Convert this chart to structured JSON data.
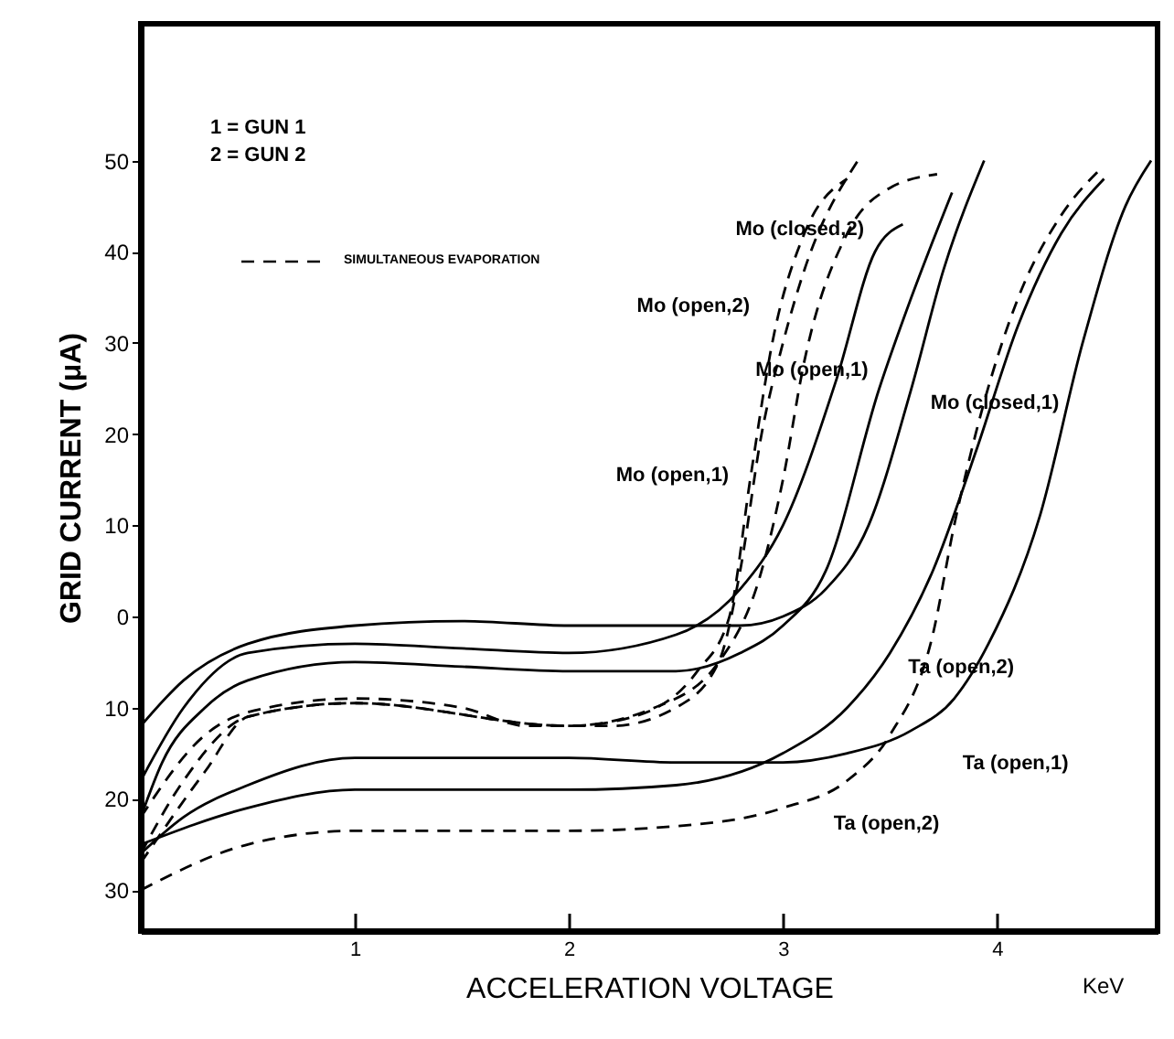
{
  "chart_data": {
    "type": "line",
    "xlabel": "ACCELERATION VOLTAGE",
    "ylabel": "GRID CURRENT (μA)",
    "xlim": [
      0,
      4.75
    ],
    "ylim": [
      -34.5,
      65
    ],
    "xticks": [
      1,
      2,
      3,
      4
    ],
    "yticks": [
      {
        "value": -30,
        "label": "30"
      },
      {
        "value": -20,
        "label": "20"
      },
      {
        "value": -10,
        "label": "10"
      },
      0,
      10,
      20,
      30,
      40,
      50
    ],
    "grid": false,
    "annotations": [
      "1 = GUN 1",
      "2 = GUN 2",
      "SIMULTANEOUS EVAPORATION",
      "KeV",
      {
        "text": "Mo (closed,2)",
        "x": 3.43,
        "y": 40
      },
      {
        "text": "Mo (open,2)",
        "x": 3.05,
        "y": 34
      },
      {
        "text": "Mo (open,1)",
        "x": 3.45,
        "y": 25
      },
      {
        "text": "Mo (closed,1)",
        "x": 3.57,
        "y": 23
      },
      {
        "text": "Mo (open,1)",
        "x": 2.85,
        "y": 15.5
      },
      {
        "text": "Ta (open,2)",
        "x": 3.5,
        "y": -4
      },
      {
        "text": "Ta (open,1)",
        "x": 3.6,
        "y": -12.5
      },
      {
        "text": "Ta (open,2)",
        "x": 3.1,
        "y": -20
      }
    ],
    "series": [
      {
        "color": "#000000",
        "line_style": "solid",
        "x": [
          0,
          0.2,
          0.5,
          1,
          1.5,
          2,
          2.5,
          2.8,
          3,
          3.2,
          3.4,
          3.6,
          3.75,
          3.94
        ],
        "values": [
          -12,
          -7,
          -3,
          -1,
          -0.5,
          -1,
          -1,
          -1,
          0,
          3,
          10,
          25,
          38,
          50
        ]
      },
      {
        "color": "#000000",
        "line_style": "solid",
        "x": [
          0,
          0.1,
          0.3,
          0.5,
          1,
          1.5,
          2,
          2.5,
          2.8,
          3,
          3.2,
          3.45,
          3.6,
          3.79
        ],
        "values": [
          -22,
          -16,
          -10,
          -7,
          -5,
          -5.5,
          -6,
          -6,
          -4,
          -1,
          5,
          25,
          35,
          46.5
        ]
      },
      {
        "color": "#000000",
        "line_style": "solid",
        "x": [
          0,
          0.2,
          0.5,
          1,
          2,
          2.5,
          3,
          3.3,
          3.6,
          3.8,
          3.96,
          4.2,
          4.4,
          4.6,
          4.72
        ],
        "values": [
          -26,
          -22,
          -18.5,
          -15.5,
          -15.5,
          -16,
          -16,
          -15,
          -12.5,
          -9,
          -3,
          11,
          30,
          45,
          50
        ]
      },
      {
        "color": "#000000",
        "line_style": "solid",
        "x": [
          0,
          0.2,
          0.5,
          1,
          1.5,
          2,
          2.5,
          2.8,
          3,
          3.25,
          3.43,
          3.56
        ],
        "values": [
          -18,
          -10,
          -4,
          -3,
          -3.5,
          -4,
          -2,
          3,
          10,
          26,
          40,
          43
        ]
      },
      {
        "color": "#000000",
        "line_style": "dashed",
        "x": [
          0,
          0.3,
          0.5,
          1,
          1.5,
          1.8,
          2.2,
          2.5,
          2.7,
          2.8,
          2.9,
          3,
          3.1,
          3.35
        ],
        "values": [
          -22,
          -13,
          -10.5,
          -9,
          -10,
          -12,
          -12,
          -10,
          -5,
          5,
          20,
          30,
          38,
          50
        ]
      },
      {
        "color": "#000000",
        "line_style": "dashed",
        "x": [
          0,
          0.2,
          0.5,
          1,
          2,
          2.3,
          2.6,
          2.75,
          2.85,
          2.95,
          3.1,
          3.3
        ],
        "values": [
          -26,
          -18,
          -11,
          -9.5,
          -12,
          -11,
          -6,
          0,
          15.5,
          30,
          42,
          48
        ]
      },
      {
        "color": "#000000",
        "line_style": "dashed",
        "x": [
          0,
          0.3,
          0.5,
          1,
          2,
          2.4,
          2.7,
          2.9,
          3,
          3.1,
          3.3,
          3.5,
          3.72
        ],
        "values": [
          -27,
          -17,
          -11,
          -9.5,
          -12,
          -10,
          -5,
          5,
          15,
          28,
          42,
          47,
          48.5
        ]
      },
      {
        "color": "#000000",
        "line_style": "solid",
        "x": [
          0,
          0.5,
          1,
          2,
          2.5,
          3,
          3.3,
          3.5,
          3.7,
          3.9,
          4.1,
          4.3,
          4.5
        ],
        "values": [
          -25,
          -21,
          -19,
          -19,
          -18.5,
          -15,
          -10,
          -4,
          5,
          18,
          32,
          42,
          48
        ]
      },
      {
        "color": "#000000",
        "line_style": "dashed",
        "x": [
          0,
          0.5,
          1,
          2,
          2.5,
          3,
          3.3,
          3.5,
          3.7,
          3.8,
          3.9,
          4.1,
          4.3,
          4.48
        ],
        "values": [
          -30,
          -25,
          -23.5,
          -23.5,
          -23,
          -21,
          -18,
          -13,
          -2,
          10,
          20,
          35,
          44,
          49
        ]
      }
    ]
  }
}
